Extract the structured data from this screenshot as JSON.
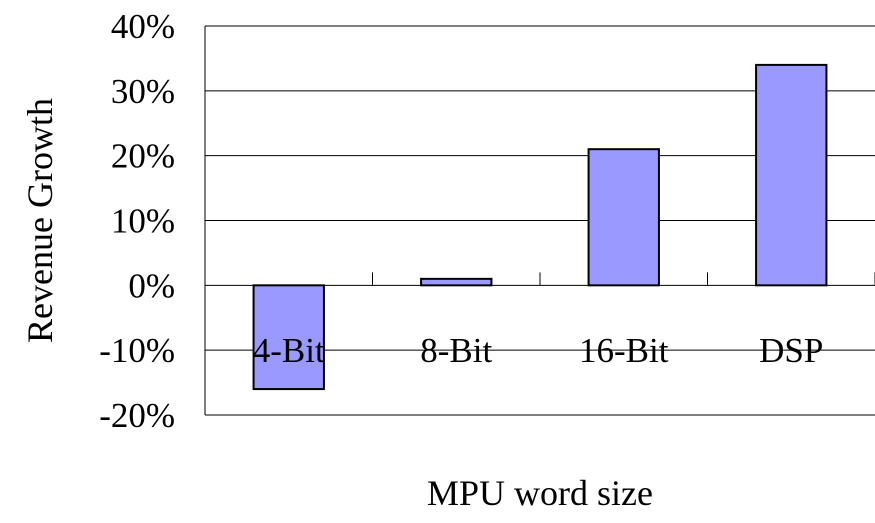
{
  "colors": {
    "bar_fill": "#9999FF",
    "bar_stroke": "#000000",
    "gridline": "#000000",
    "axis": "#000000",
    "background": "#FFFFFF"
  },
  "chart_data": {
    "type": "bar",
    "title": "",
    "xlabel": "MPU word size",
    "ylabel": "Revenue Growth",
    "categories": [
      "4-Bit",
      "8-Bit",
      "16-Bit",
      "DSP"
    ],
    "values": [
      -16,
      1,
      21,
      34
    ],
    "ylim": [
      -20,
      40
    ],
    "yticks": [
      40,
      30,
      20,
      10,
      0,
      -10,
      -20
    ],
    "ytick_labels": [
      "40%",
      "30%",
      "20%",
      "10%",
      "0%",
      "-10%",
      "-20%"
    ],
    "grid": true,
    "legend": "none"
  }
}
